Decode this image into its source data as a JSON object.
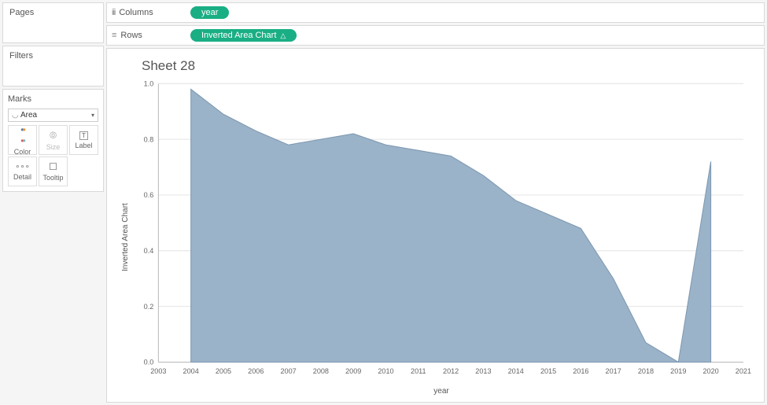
{
  "panels": {
    "pages": "Pages",
    "filters": "Filters",
    "marks": "Marks"
  },
  "shelves": {
    "columns_label": "Columns",
    "rows_label": "Rows",
    "columns_pill": "year",
    "rows_pill": "Inverted Area Chart",
    "pill_color": "#1aae84"
  },
  "marks": {
    "type": "Area",
    "cells": {
      "color": "Color",
      "size": "Size",
      "label": "Label",
      "detail": "Detail",
      "tooltip": "Tooltip"
    }
  },
  "chart": {
    "title": "Sheet 28",
    "type": "area",
    "x_label": "year",
    "y_label": "Inverted Area Chart",
    "x_categories": [
      2003,
      2004,
      2005,
      2006,
      2007,
      2008,
      2009,
      2010,
      2011,
      2012,
      2013,
      2014,
      2015,
      2016,
      2017,
      2018,
      2019,
      2020,
      2021
    ],
    "y_ticks": [
      0.0,
      0.2,
      0.4,
      0.6,
      0.8,
      1.0
    ],
    "ylim": [
      0.0,
      1.0
    ],
    "series": {
      "years": [
        2004,
        2005,
        2006,
        2007,
        2008,
        2009,
        2010,
        2011,
        2012,
        2013,
        2014,
        2015,
        2016,
        2017,
        2018,
        2019,
        2020
      ],
      "values": [
        0.98,
        0.89,
        0.83,
        0.78,
        0.8,
        0.82,
        0.78,
        0.76,
        0.74,
        0.67,
        0.58,
        0.53,
        0.48,
        0.3,
        0.07,
        0.0,
        0.72
      ]
    },
    "area_fill": "#9ab3c9",
    "area_stroke": "#7d98b0",
    "grid_color": "#e5e5e5",
    "axis_color": "#b8b8b8",
    "background": "#ffffff",
    "tick_fontsize": 9,
    "label_fontsize": 10,
    "title_fontsize": 17
  }
}
